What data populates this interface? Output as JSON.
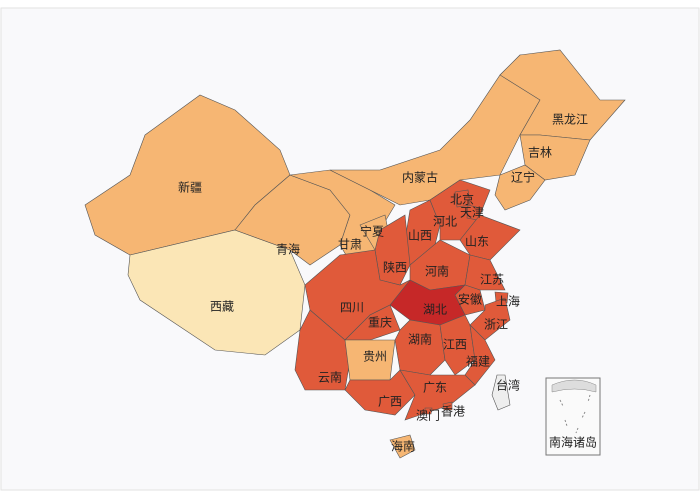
{
  "map": {
    "regions": [
      {
        "name": "新疆",
        "color": "#f6b673"
      },
      {
        "name": "西藏",
        "color": "#fbe6b6"
      },
      {
        "name": "青海",
        "color": "#f6b673"
      },
      {
        "name": "甘肃",
        "color": "#f6b673"
      },
      {
        "name": "内蒙古",
        "color": "#f6b673"
      },
      {
        "name": "黑龙江",
        "color": "#f6b673"
      },
      {
        "name": "吉林",
        "color": "#f6b673"
      },
      {
        "name": "辽宁",
        "color": "#f6b673"
      },
      {
        "name": "宁夏",
        "color": "#f6b673"
      },
      {
        "name": "山西",
        "color": "#e05a3a"
      },
      {
        "name": "陕西",
        "color": "#e05a3a"
      },
      {
        "name": "河北",
        "color": "#e05a3a"
      },
      {
        "name": "北京",
        "color": "#e05a3a"
      },
      {
        "name": "天津",
        "color": "#e05a3a"
      },
      {
        "name": "山东",
        "color": "#e05a3a"
      },
      {
        "name": "河南",
        "color": "#e05a3a"
      },
      {
        "name": "江苏",
        "color": "#e05a3a"
      },
      {
        "name": "安徽",
        "color": "#e05a3a"
      },
      {
        "name": "上海",
        "color": "#e05a3a"
      },
      {
        "name": "浙江",
        "color": "#e05a3a"
      },
      {
        "name": "湖北",
        "color": "#c62828"
      },
      {
        "name": "四川",
        "color": "#e05a3a"
      },
      {
        "name": "重庆",
        "color": "#e05a3a"
      },
      {
        "name": "云南",
        "color": "#e05a3a"
      },
      {
        "name": "贵州",
        "color": "#f6b673"
      },
      {
        "name": "湖南",
        "color": "#e05a3a"
      },
      {
        "name": "江西",
        "color": "#e05a3a"
      },
      {
        "name": "福建",
        "color": "#e05a3a"
      },
      {
        "name": "广西",
        "color": "#e05a3a"
      },
      {
        "name": "广东",
        "color": "#e05a3a"
      },
      {
        "name": "香港",
        "color": "#e05a3a"
      },
      {
        "name": "澳门",
        "color": "#e05a3a"
      },
      {
        "name": "海南",
        "color": "#f6b673"
      },
      {
        "name": "台湾",
        "color": "#eeeeee"
      }
    ],
    "inset_label": "南海诸岛"
  }
}
